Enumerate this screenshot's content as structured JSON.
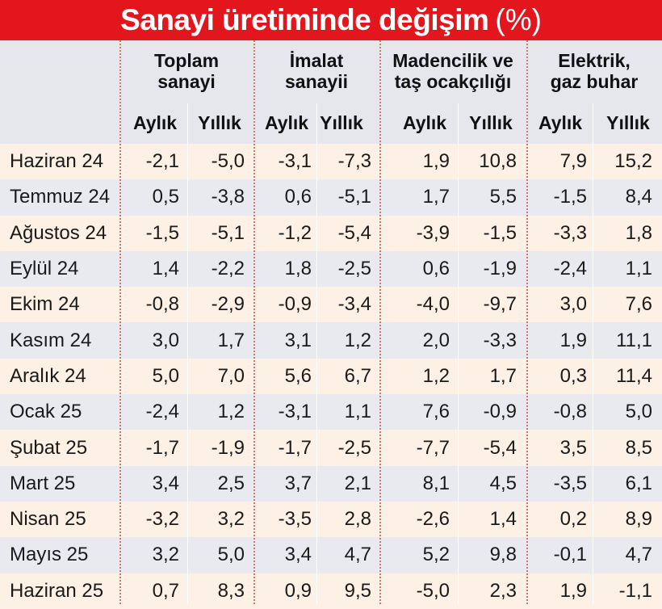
{
  "title": "Sanayi üretiminde değişim",
  "title_unit": "(%)",
  "chart_data": {
    "type": "table",
    "title": "Sanayi üretiminde değişim (%)",
    "groups": [
      {
        "label_line1": "Toplam",
        "label_line2": "sanayi"
      },
      {
        "label_line1": "İmalat",
        "label_line2": "sanayii"
      },
      {
        "label_line1": "Madencilik ve",
        "label_line2": "taş ocakçılığı"
      },
      {
        "label_line1": "Elektrik,",
        "label_line2": "gaz buhar"
      }
    ],
    "subcolumns": [
      "Aylık",
      "Yıllık"
    ],
    "rows": [
      {
        "period": "Haziran 24",
        "values": [
          "-2,1",
          "-5,0",
          "-3,1",
          "-7,3",
          "1,9",
          "10,8",
          "7,9",
          "15,2"
        ]
      },
      {
        "period": "Temmuz 24",
        "values": [
          "0,5",
          "-3,8",
          "0,6",
          "-5,1",
          "1,7",
          "5,5",
          "-1,5",
          "8,4"
        ]
      },
      {
        "period": "Ağustos 24",
        "values": [
          "-1,5",
          "-5,1",
          "-1,2",
          "-5,4",
          "-3,9",
          "-1,5",
          "-3,3",
          "1,8"
        ]
      },
      {
        "period": "Eylül 24",
        "values": [
          "1,4",
          "-2,2",
          "1,8",
          "-2,5",
          "0,6",
          "-1,9",
          "-2,4",
          "1,1"
        ]
      },
      {
        "period": "Ekim 24",
        "values": [
          "-0,8",
          "-2,9",
          "-0,9",
          "-3,4",
          "-4,0",
          "-9,7",
          "3,0",
          "7,6"
        ]
      },
      {
        "period": "Kasım 24",
        "values": [
          "3,0",
          "1,7",
          "3,1",
          "1,2",
          "2,0",
          "-3,3",
          "1,9",
          "11,1"
        ]
      },
      {
        "period": "Aralık 24",
        "values": [
          "5,0",
          "7,0",
          "5,6",
          "6,7",
          "1,2",
          "1,7",
          "0,3",
          "11,4"
        ]
      },
      {
        "period": "Ocak 25",
        "values": [
          "-2,4",
          "1,2",
          "-3,1",
          "1,1",
          "7,6",
          "-0,9",
          "-0,8",
          "5,0"
        ]
      },
      {
        "period": "Şubat 25",
        "values": [
          "-1,7",
          "-1,9",
          "-1,7",
          "-2,5",
          "-7,7",
          "-5,4",
          "3,5",
          "8,5"
        ]
      },
      {
        "period": "Mart 25",
        "values": [
          "3,4",
          "2,5",
          "3,7",
          "2,1",
          "8,1",
          "4,5",
          "-3,5",
          "6,1"
        ]
      },
      {
        "period": "Nisan 25",
        "values": [
          "-3,2",
          "3,2",
          "-3,5",
          "2,8",
          "-2,6",
          "1,4",
          "0,2",
          "8,9"
        ]
      },
      {
        "period": "Mayıs 25",
        "values": [
          "3,2",
          "5,0",
          "3,4",
          "4,7",
          "5,2",
          "9,8",
          "-0,1",
          "4,7"
        ]
      },
      {
        "period": "Haziran 25",
        "values": [
          "0,7",
          "8,3",
          "0,9",
          "9,5",
          "-5,0",
          "2,3",
          "1,9",
          "-1,1"
        ]
      }
    ]
  },
  "colors": {
    "title_bg": "#e3161e",
    "title_text": "#ffffff",
    "header_bg": "#e5e7ec",
    "row_odd": "#fdf0e4",
    "row_even": "#e8eaef",
    "divider": "#e07070"
  }
}
